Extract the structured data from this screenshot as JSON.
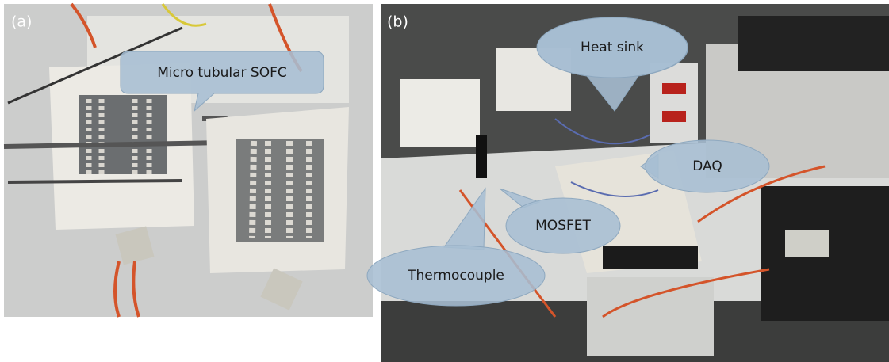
{
  "panels": [
    {
      "label": "(a)",
      "callouts": [
        "Micro tubular SOFC"
      ]
    },
    {
      "label": "(b)",
      "callouts": [
        "Heat sink",
        "DAQ",
        "MOSFET",
        "Thermocouple"
      ]
    }
  ]
}
